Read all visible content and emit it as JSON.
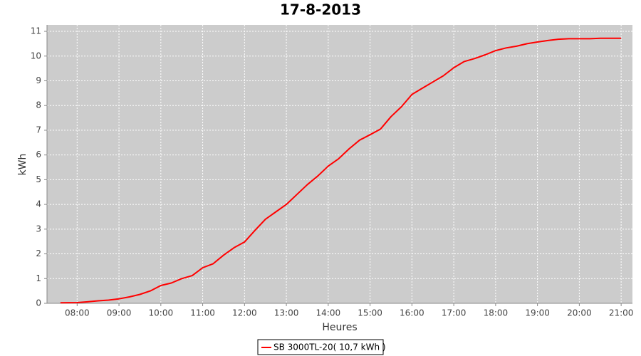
{
  "chart_data": {
    "type": "line",
    "title": "17-8-2013",
    "x_label": "Heures",
    "y_label": "kWh",
    "x": [
      7.6,
      8.0,
      8.25,
      8.5,
      8.75,
      9.0,
      9.25,
      9.5,
      9.75,
      10.0,
      10.25,
      10.5,
      10.75,
      11.0,
      11.25,
      11.5,
      11.75,
      12.0,
      12.25,
      12.5,
      12.75,
      13.0,
      13.25,
      13.5,
      13.75,
      14.0,
      14.25,
      14.5,
      14.75,
      15.0,
      15.25,
      15.5,
      15.75,
      16.0,
      16.25,
      16.5,
      16.75,
      17.0,
      17.25,
      17.5,
      17.75,
      18.0,
      18.25,
      18.5,
      18.75,
      19.0,
      19.25,
      19.5,
      19.75,
      20.0,
      20.25,
      20.5,
      20.75,
      21.0
    ],
    "series": [
      {
        "name": "SB 3000TL-20( 10,7 kWh )",
        "color": "#ff0000",
        "values": [
          0.02,
          0.03,
          0.06,
          0.1,
          0.13,
          0.18,
          0.26,
          0.36,
          0.5,
          0.72,
          0.82,
          1.0,
          1.12,
          1.44,
          1.6,
          1.95,
          2.25,
          2.48,
          2.95,
          3.4,
          3.7,
          4.0,
          4.4,
          4.8,
          5.15,
          5.55,
          5.85,
          6.25,
          6.6,
          6.82,
          7.05,
          7.55,
          7.95,
          8.45,
          8.7,
          8.95,
          9.2,
          9.53,
          9.78,
          9.9,
          10.05,
          10.22,
          10.33,
          10.4,
          10.5,
          10.57,
          10.63,
          10.68,
          10.7,
          10.7,
          10.7,
          10.72,
          10.72,
          10.72
        ]
      }
    ],
    "xlim": [
      7.28,
      21.27
    ],
    "xticks": [
      {
        "value": 8,
        "label": "08:00"
      },
      {
        "value": 9,
        "label": "09:00"
      },
      {
        "value": 10,
        "label": "10:00"
      },
      {
        "value": 11,
        "label": "11:00"
      },
      {
        "value": 12,
        "label": "12:00"
      },
      {
        "value": 13,
        "label": "13:00"
      },
      {
        "value": 14,
        "label": "14:00"
      },
      {
        "value": 15,
        "label": "15:00"
      },
      {
        "value": 16,
        "label": "16:00"
      },
      {
        "value": 17,
        "label": "17:00"
      },
      {
        "value": 18,
        "label": "18:00"
      },
      {
        "value": 19,
        "label": "19:00"
      },
      {
        "value": 20,
        "label": "20:00"
      },
      {
        "value": 21,
        "label": "21:00"
      }
    ],
    "ylim": [
      0,
      11.26
    ],
    "yticks": [
      0,
      1,
      2,
      3,
      4,
      5,
      6,
      7,
      8,
      9,
      10,
      11
    ],
    "grid": true,
    "legend": "bottom"
  }
}
